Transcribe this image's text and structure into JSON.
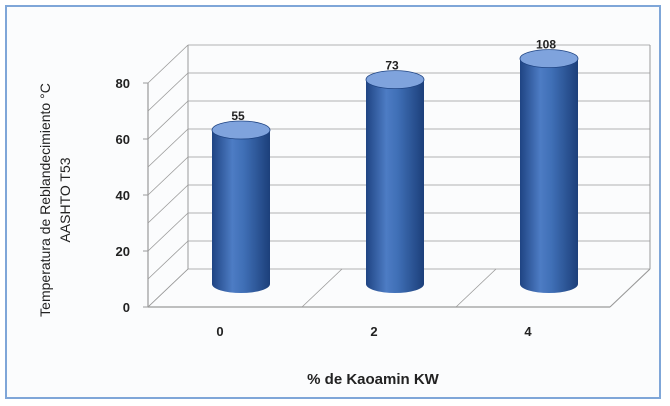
{
  "chart_data": {
    "type": "bar",
    "style": "3d-cylinder",
    "categories": [
      "0",
      "2",
      "4"
    ],
    "values": [
      55,
      73,
      108
    ],
    "data_labels": [
      "55",
      "73",
      "108"
    ],
    "title": "",
    "xlabel": "% de Kaoamin KW",
    "ylabel_lines": [
      "Temperatura de Reblandecimiento  °C",
      "AASHTO  T53"
    ],
    "ylim": [
      0,
      80
    ],
    "yticks": [
      "0",
      "20",
      "40",
      "60",
      "80"
    ],
    "grid": true,
    "legend": "none",
    "colors": {
      "bar": "#3f6fb6",
      "bar_dark": "#1f4483",
      "bar_light": "#7fa3dd",
      "grid": "#9a9a9a",
      "frame": "#7fa6d8"
    }
  }
}
